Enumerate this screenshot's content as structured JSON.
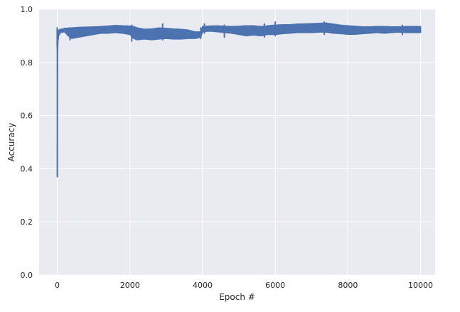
{
  "chart_data": {
    "type": "line",
    "title": "",
    "xlabel": "Epoch #",
    "ylabel": "Accuracy",
    "xlim": [
      -500,
      10400
    ],
    "ylim": [
      0.0,
      1.0
    ],
    "xticks": [
      0,
      2000,
      4000,
      6000,
      8000,
      10000
    ],
    "xtick_labels": [
      "0",
      "2000",
      "4000",
      "6000",
      "8000",
      "10000"
    ],
    "yticks": [
      0.0,
      0.2,
      0.4,
      0.6,
      0.8,
      1.0
    ],
    "ytick_labels": [
      "0.0",
      "0.2",
      "0.4",
      "0.6",
      "0.8",
      "1.0"
    ],
    "grid": true,
    "colors": {
      "plot_background": "#eaeaf2",
      "grid": "#ffffff",
      "series": "#4c72b0"
    },
    "series": [
      {
        "x": [
          0,
          10,
          20,
          30,
          40,
          60,
          80,
          100,
          150,
          200,
          300,
          400,
          600,
          800,
          1000,
          1200,
          1400,
          1600,
          1800,
          2000,
          2100,
          2200,
          2400,
          2600,
          2800,
          3000,
          3200,
          3400,
          3600,
          3800,
          3950,
          4000,
          4200,
          4400,
          4600,
          4800,
          5000,
          5200,
          5400,
          5600,
          5800,
          6000,
          6200,
          6400,
          6600,
          6800,
          7000,
          7200,
          7400,
          7600,
          7800,
          8000,
          8200,
          8400,
          8600,
          8800,
          9000,
          9200,
          9400,
          9600,
          9800,
          10000
        ],
        "low": [
          0.37,
          0.84,
          0.88,
          0.89,
          0.9,
          0.905,
          0.91,
          0.912,
          0.914,
          0.915,
          0.9,
          0.89,
          0.895,
          0.9,
          0.905,
          0.91,
          0.91,
          0.912,
          0.91,
          0.905,
          0.89,
          0.885,
          0.888,
          0.885,
          0.888,
          0.89,
          0.888,
          0.888,
          0.89,
          0.89,
          0.895,
          0.915,
          0.918,
          0.915,
          0.912,
          0.91,
          0.905,
          0.9,
          0.903,
          0.9,
          0.905,
          0.905,
          0.908,
          0.91,
          0.912,
          0.912,
          0.912,
          0.914,
          0.914,
          0.91,
          0.908,
          0.906,
          0.906,
          0.908,
          0.91,
          0.912,
          0.91,
          0.912,
          0.914,
          0.912,
          0.912,
          0.912
        ],
        "high": [
          0.37,
          0.9,
          0.915,
          0.92,
          0.922,
          0.923,
          0.924,
          0.925,
          0.926,
          0.928,
          0.929,
          0.93,
          0.932,
          0.933,
          0.934,
          0.935,
          0.937,
          0.939,
          0.938,
          0.937,
          0.935,
          0.93,
          0.925,
          0.926,
          0.93,
          0.928,
          0.926,
          0.925,
          0.922,
          0.915,
          0.915,
          0.935,
          0.937,
          0.938,
          0.936,
          0.935,
          0.936,
          0.938,
          0.938,
          0.935,
          0.938,
          0.94,
          0.942,
          0.942,
          0.944,
          0.945,
          0.946,
          0.947,
          0.948,
          0.944,
          0.94,
          0.938,
          0.936,
          0.934,
          0.934,
          0.935,
          0.935,
          0.934,
          0.934,
          0.935,
          0.935,
          0.935
        ],
        "spikes": [
          [
            -3,
            0.86,
            0.93
          ],
          [
            2,
            0.37,
            0.89
          ],
          [
            350,
            0.885,
            0.93
          ],
          [
            2050,
            0.88,
            0.94
          ],
          [
            2900,
            0.885,
            0.945
          ],
          [
            3950,
            0.89,
            0.93
          ],
          [
            4050,
            0.91,
            0.945
          ],
          [
            4600,
            0.895,
            0.94
          ],
          [
            5700,
            0.895,
            0.945
          ],
          [
            6000,
            0.9,
            0.952
          ],
          [
            7350,
            0.905,
            0.952
          ],
          [
            9500,
            0.905,
            0.94
          ]
        ]
      }
    ]
  }
}
